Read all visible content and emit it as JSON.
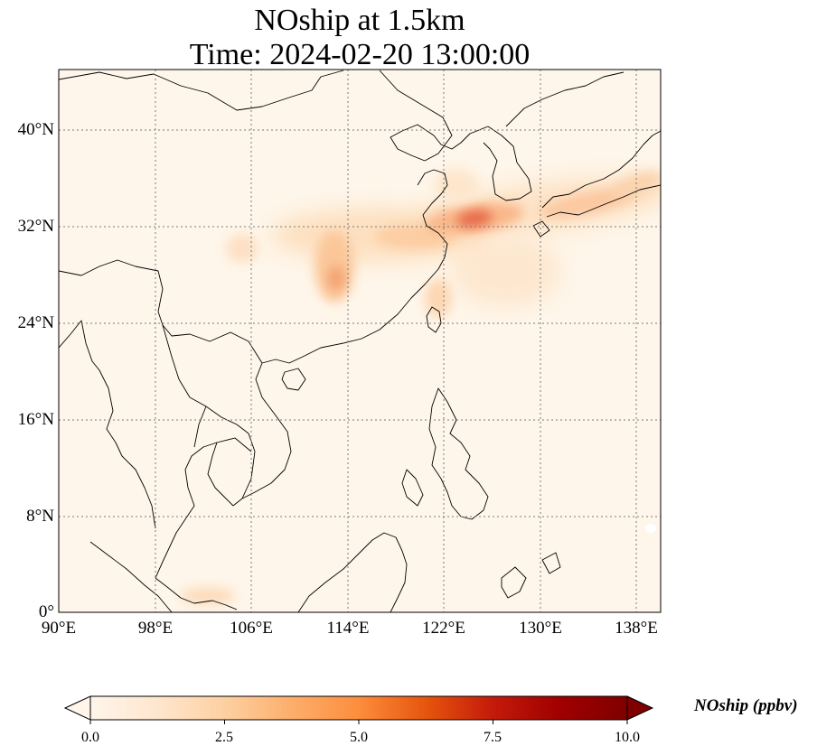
{
  "title_line1": "NOship at 1.5km",
  "title_line2": "Time: 2024-02-20 13:00:00",
  "lat_ticks": [
    "40°N",
    "32°N",
    "24°N",
    "16°N",
    "8°N",
    "0°"
  ],
  "lon_ticks": [
    "90°E",
    "98°E",
    "106°E",
    "114°E",
    "122°E",
    "130°E",
    "138°E"
  ],
  "colorbar": {
    "label": "NOship (ppbv)",
    "ticks": [
      "0.0",
      "2.5",
      "5.0",
      "7.5",
      "10.0"
    ],
    "min": 0,
    "max": 10,
    "colormap": [
      "#fff5eb",
      "#fee6ce",
      "#fdd0a2",
      "#fdae6b",
      "#fd8d3c",
      "#f16913",
      "#d94801",
      "#a63603",
      "#7f2704"
    ]
  },
  "map": {
    "lon_range": [
      90,
      140
    ],
    "lat_range": [
      0,
      45
    ],
    "gridlines": "dotted",
    "background_color": "#fef6ea"
  }
}
